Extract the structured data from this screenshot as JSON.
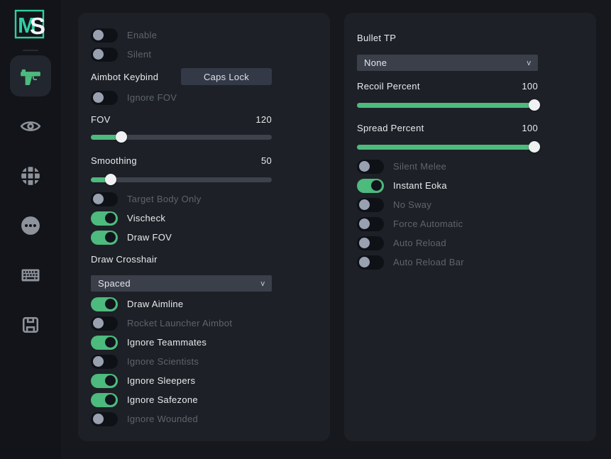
{
  "colors": {
    "accent_green": "#4dba7e",
    "logo_teal": "#2fd0a2",
    "page_bg": "#17181d",
    "panel_bg": "#1d2026",
    "sidebar_bg": "#121419",
    "dropdown_bg": "#3a3f4a",
    "toggle_off_knob": "#99a1b0",
    "slider_thumb": "#f0f1f3"
  },
  "sidebar": {
    "logo": {
      "letter_m": "M",
      "letter_s": "S"
    },
    "items": [
      {
        "icon": "pistol-icon",
        "active": true
      },
      {
        "icon": "eye-icon",
        "active": false
      },
      {
        "icon": "globe-icon",
        "active": false
      },
      {
        "icon": "ellipsis-icon",
        "active": false
      },
      {
        "icon": "keyboard-icon",
        "active": false
      },
      {
        "icon": "save-icon",
        "active": false
      }
    ]
  },
  "aimbot_panel": {
    "enable_toggle": {
      "label": "Enable",
      "on": false
    },
    "silent_toggle": {
      "label": "Silent",
      "on": false
    },
    "keybind": {
      "label": "Aimbot Keybind",
      "value": "Caps Lock"
    },
    "ignore_fov_toggle": {
      "label": "Ignore FOV",
      "on": false
    },
    "fov_slider": {
      "label": "FOV",
      "value": "120",
      "fill_percent": 17
    },
    "smoothing_slider": {
      "label": "Smoothing",
      "value": "50",
      "fill_percent": 11
    },
    "target_body_only_toggle": {
      "label": "Target Body Only",
      "on": false
    },
    "vischeck_toggle": {
      "label": "Vischeck",
      "on": true
    },
    "draw_fov_toggle": {
      "label": "Draw FOV",
      "on": true
    },
    "draw_crosshair": {
      "label": "Draw Crosshair",
      "selected": "Spaced",
      "chevron": "v"
    },
    "draw_aimline_toggle": {
      "label": "Draw Aimline",
      "on": true
    },
    "rocket_launcher_aimbot_toggle": {
      "label": "Rocket Launcher Aimbot",
      "on": false
    },
    "ignore_teammates_toggle": {
      "label": "Ignore Teammates",
      "on": true
    },
    "ignore_scientists_toggle": {
      "label": "Ignore Scientists",
      "on": false
    },
    "ignore_sleepers_toggle": {
      "label": "Ignore Sleepers",
      "on": true
    },
    "ignore_safezone_toggle": {
      "label": "Ignore Safezone",
      "on": true
    },
    "ignore_wounded_toggle": {
      "label": "Ignore Wounded",
      "on": false
    }
  },
  "weapons_panel": {
    "bullet_tp": {
      "label": "Bullet TP",
      "selected": "None",
      "chevron": "v"
    },
    "recoil_slider": {
      "label": "Recoil Percent",
      "value": "100",
      "fill_percent": 98
    },
    "spread_slider": {
      "label": "Spread Percent",
      "value": "100",
      "fill_percent": 98
    },
    "silent_melee_toggle": {
      "label": "Silent Melee",
      "on": false
    },
    "instant_eoka_toggle": {
      "label": "Instant Eoka",
      "on": true
    },
    "no_sway_toggle": {
      "label": "No Sway",
      "on": false
    },
    "force_automatic_toggle": {
      "label": "Force Automatic",
      "on": false
    },
    "auto_reload_toggle": {
      "label": "Auto Reload",
      "on": false
    },
    "auto_reload_bar_toggle": {
      "label": "Auto Reload Bar",
      "on": false
    }
  }
}
